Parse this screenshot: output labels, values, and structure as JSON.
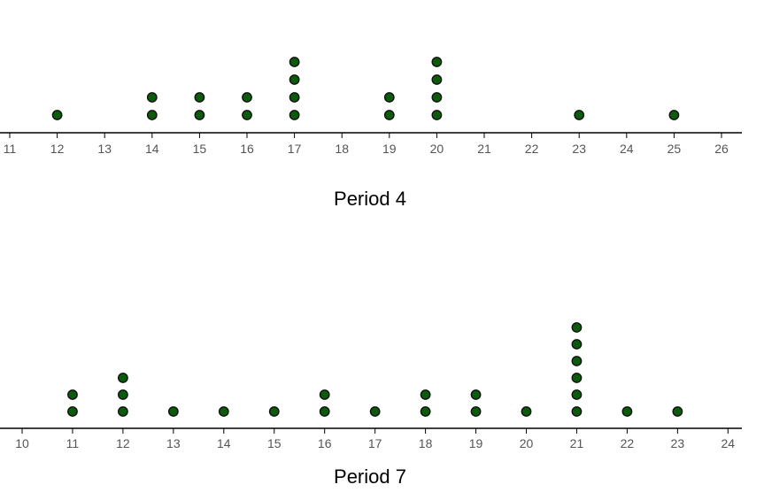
{
  "colors": {
    "dot_fill": "#0a5c0a",
    "dot_stroke": "#111111",
    "axis": "#000000",
    "tick_text": "#555555"
  },
  "chart_data": [
    {
      "type": "dot plot",
      "title": "Period 4",
      "xlim": [
        11,
        26
      ],
      "ticks": [
        11,
        12,
        13,
        14,
        15,
        16,
        17,
        18,
        19,
        20,
        21,
        22,
        23,
        24,
        25,
        26
      ],
      "tick_labels": [
        "11",
        "12",
        "13",
        "14",
        "15",
        "16",
        "17",
        "18",
        "19",
        "20",
        "21",
        "22",
        "23",
        "24",
        "25",
        "26"
      ],
      "points": [
        {
          "x": 12,
          "count": 1
        },
        {
          "x": 14,
          "count": 2
        },
        {
          "x": 15,
          "count": 2
        },
        {
          "x": 16,
          "count": 2
        },
        {
          "x": 17,
          "count": 4
        },
        {
          "x": 19,
          "count": 2
        },
        {
          "x": 20,
          "count": 4
        },
        {
          "x": 23,
          "count": 1
        },
        {
          "x": 25,
          "count": 1
        }
      ]
    },
    {
      "type": "dot plot",
      "title": "Period 7",
      "xlim": [
        10,
        24
      ],
      "ticks": [
        10,
        11,
        12,
        13,
        14,
        15,
        16,
        17,
        18,
        19,
        20,
        21,
        22,
        23,
        24
      ],
      "tick_labels": [
        "10",
        "11",
        "12",
        "13",
        "14",
        "15",
        "16",
        "17",
        "18",
        "19",
        "20",
        "21",
        "22",
        "23",
        "24"
      ],
      "points": [
        {
          "x": 11,
          "count": 2
        },
        {
          "x": 12,
          "count": 3
        },
        {
          "x": 13,
          "count": 1
        },
        {
          "x": 14,
          "count": 1
        },
        {
          "x": 15,
          "count": 1
        },
        {
          "x": 16,
          "count": 2
        },
        {
          "x": 17,
          "count": 1
        },
        {
          "x": 18,
          "count": 2
        },
        {
          "x": 19,
          "count": 2
        },
        {
          "x": 20,
          "count": 1
        },
        {
          "x": 21,
          "count": 6
        },
        {
          "x": 22,
          "count": 1
        },
        {
          "x": 23,
          "count": 1
        }
      ]
    }
  ]
}
